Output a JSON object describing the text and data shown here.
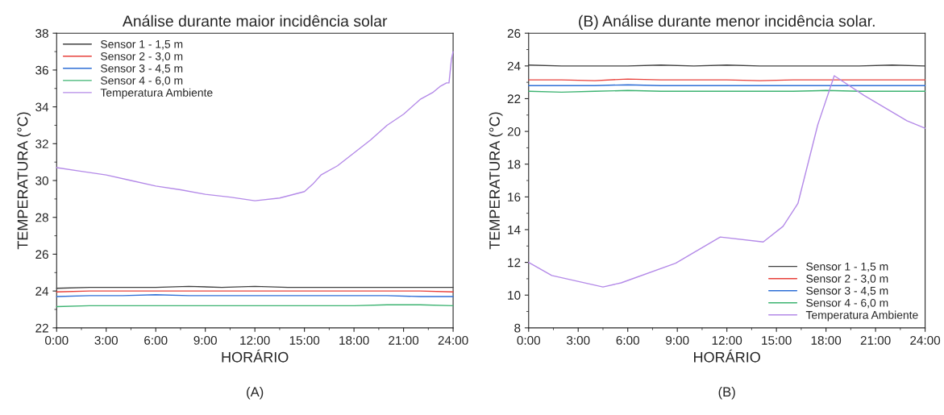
{
  "chart_data": [
    {
      "type": "line",
      "title": "Análise durante maior incidência solar",
      "xlabel": "HORÁRIO",
      "ylabel": "TEMPERATURA (°C)",
      "annotations": [
        "(A)"
      ],
      "xlim": [
        0,
        24
      ],
      "xticks": [
        {
          "value": 0,
          "label": "0:00"
        },
        {
          "value": 3,
          "label": "3:00"
        },
        {
          "value": 6,
          "label": "6:00"
        },
        {
          "value": 9,
          "label": "9:00"
        },
        {
          "value": 12,
          "label": "12:00"
        },
        {
          "value": 15,
          "label": "15:00"
        },
        {
          "value": 18,
          "label": "18:00"
        },
        {
          "value": 21,
          "label": "21:00"
        },
        {
          "value": 24,
          "label": "24:00"
        }
      ],
      "ylim": [
        22,
        38
      ],
      "yticks": [
        22,
        24,
        26,
        28,
        30,
        32,
        34,
        36,
        38
      ],
      "grid": false,
      "legend": "top left",
      "series": [
        {
          "name": "Sensor 1 - 1,5 m",
          "color": "#404040",
          "x": [
            0,
            2,
            4,
            6,
            8,
            10,
            12,
            14,
            16,
            18,
            20,
            22,
            24
          ],
          "values": [
            24.15,
            24.2,
            24.2,
            24.2,
            24.25,
            24.2,
            24.25,
            24.2,
            24.2,
            24.2,
            24.2,
            24.2,
            24.2
          ]
        },
        {
          "name": "Sensor 2 - 3,0 m",
          "color": "#e8413b",
          "x": [
            0,
            2,
            4,
            6,
            8,
            10,
            12,
            14,
            16,
            18,
            20,
            22,
            24
          ],
          "values": [
            23.95,
            24.0,
            24.0,
            24.0,
            24.0,
            24.0,
            24.0,
            24.0,
            24.0,
            24.0,
            24.0,
            24.0,
            23.95
          ]
        },
        {
          "name": "Sensor 3 - 4,5 m",
          "color": "#2f6fd6",
          "x": [
            0,
            2,
            4,
            6,
            8,
            10,
            12,
            14,
            16,
            18,
            20,
            22,
            24
          ],
          "values": [
            23.7,
            23.75,
            23.75,
            23.8,
            23.75,
            23.75,
            23.75,
            23.75,
            23.75,
            23.75,
            23.75,
            23.7,
            23.7
          ]
        },
        {
          "name": "Sensor 4 - 6,0 m",
          "color": "#3cb371",
          "x": [
            0,
            2,
            4,
            6,
            8,
            10,
            12,
            14,
            16,
            18,
            20,
            22,
            24
          ],
          "values": [
            23.15,
            23.2,
            23.2,
            23.2,
            23.2,
            23.2,
            23.2,
            23.2,
            23.2,
            23.2,
            23.25,
            23.25,
            23.2
          ]
        },
        {
          "name": "Temperatura Ambiente",
          "color": "#b48ae8",
          "x": [
            0,
            1.5,
            3,
            4.5,
            6,
            7.5,
            9,
            10.5,
            12,
            13.5,
            15,
            15.5,
            16,
            17,
            18,
            19,
            20,
            21,
            22,
            22.8,
            23.2,
            23.6,
            23.75,
            23.9,
            24
          ],
          "values": [
            30.7,
            30.5,
            30.3,
            30.0,
            29.7,
            29.5,
            29.25,
            29.1,
            28.9,
            29.05,
            29.4,
            29.8,
            30.3,
            30.8,
            31.5,
            32.2,
            33.0,
            33.6,
            34.4,
            34.8,
            35.1,
            35.3,
            35.3,
            36.6,
            37.0
          ]
        }
      ]
    },
    {
      "type": "line",
      "title": "(B) Análise durante menor incidência solar.",
      "xlabel": "HORÁRIO",
      "ylabel": "TEMPERATURA (°C)",
      "annotations": [
        "(B)"
      ],
      "xlim": [
        0,
        24
      ],
      "xticks": [
        {
          "value": 0,
          "label": "0:00"
        },
        {
          "value": 3,
          "label": "3:00"
        },
        {
          "value": 6,
          "label": "6:00"
        },
        {
          "value": 9,
          "label": "9:00"
        },
        {
          "value": 12,
          "label": "12:00"
        },
        {
          "value": 15,
          "label": "15:00"
        },
        {
          "value": 18,
          "label": "18:00"
        },
        {
          "value": 21,
          "label": "21:00"
        },
        {
          "value": 24,
          "label": "24:00"
        }
      ],
      "ylim": [
        8,
        26
      ],
      "yticks": [
        8,
        10,
        12,
        14,
        16,
        18,
        20,
        22,
        24,
        26
      ],
      "grid": false,
      "legend": "bottom right",
      "series": [
        {
          "name": "Sensor 1 - 1,5 m",
          "color": "#404040",
          "x": [
            0,
            2,
            4,
            6,
            8,
            10,
            12,
            14,
            16,
            18,
            20,
            22,
            24
          ],
          "values": [
            24.05,
            24.0,
            24.0,
            24.0,
            24.05,
            24.0,
            24.05,
            24.0,
            24.0,
            24.0,
            24.0,
            24.05,
            24.0
          ]
        },
        {
          "name": "Sensor 2 - 3,0 m",
          "color": "#e8413b",
          "x": [
            0,
            2,
            4,
            6,
            8,
            10,
            12,
            14,
            16,
            18,
            20,
            22,
            24
          ],
          "values": [
            23.15,
            23.15,
            23.1,
            23.2,
            23.15,
            23.15,
            23.15,
            23.1,
            23.15,
            23.15,
            23.15,
            23.15,
            23.15
          ]
        },
        {
          "name": "Sensor 3 - 4,5 m",
          "color": "#2f6fd6",
          "x": [
            0,
            2,
            4,
            6,
            8,
            10,
            12,
            14,
            16,
            18,
            20,
            22,
            24
          ],
          "values": [
            22.8,
            22.8,
            22.8,
            22.85,
            22.8,
            22.8,
            22.8,
            22.8,
            22.8,
            22.8,
            22.8,
            22.8,
            22.8
          ]
        },
        {
          "name": "Sensor 4 - 6,0 m",
          "color": "#3cb371",
          "x": [
            0,
            2,
            4,
            6,
            8,
            10,
            12,
            14,
            16,
            18,
            20,
            22,
            24
          ],
          "values": [
            22.45,
            22.4,
            22.45,
            22.5,
            22.45,
            22.45,
            22.45,
            22.45,
            22.45,
            22.5,
            22.45,
            22.45,
            22.45
          ]
        },
        {
          "name": "Temperatura Ambiente",
          "color": "#b48ae8",
          "x": [
            0,
            1.4,
            4.5,
            5.6,
            8.9,
            11.6,
            14.2,
            15.4,
            16.3,
            17.5,
            18.5,
            20.3,
            22.9,
            24
          ],
          "values": [
            12.0,
            11.2,
            10.5,
            10.75,
            11.95,
            13.55,
            13.25,
            14.2,
            15.6,
            20.4,
            23.4,
            22.2,
            20.65,
            20.2
          ]
        }
      ]
    }
  ]
}
